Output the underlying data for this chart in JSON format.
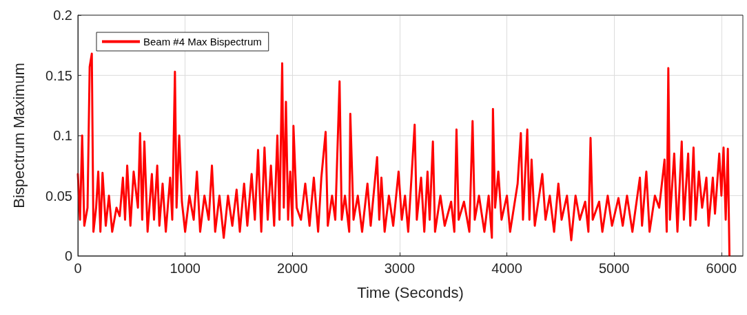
{
  "chart_data": {
    "type": "line",
    "xlabel": "Time (Seconds)",
    "ylabel": "Bispectrum Maximum",
    "xlim": [
      0,
      6200
    ],
    "ylim": [
      0,
      0.2
    ],
    "xticks": [
      0,
      1000,
      2000,
      3000,
      4000,
      5000,
      6000
    ],
    "yticks": [
      0,
      0.05,
      0.1,
      0.15,
      0.2
    ],
    "grid": true,
    "legend": "top left",
    "marker": "none",
    "line_style": "solid",
    "series": [
      {
        "name": "Beam #4 Max Bispectrum",
        "color": "#ff0000",
        "x": [
          0,
          20,
          40,
          60,
          90,
          110,
          130,
          145,
          170,
          190,
          210,
          230,
          260,
          290,
          320,
          360,
          390,
          420,
          440,
          460,
          490,
          520,
          560,
          580,
          600,
          620,
          650,
          690,
          710,
          740,
          760,
          790,
          820,
          860,
          880,
          905,
          920,
          945,
          970,
          1000,
          1040,
          1080,
          1110,
          1140,
          1180,
          1220,
          1250,
          1280,
          1320,
          1360,
          1400,
          1440,
          1480,
          1510,
          1550,
          1580,
          1620,
          1650,
          1680,
          1710,
          1740,
          1770,
          1800,
          1830,
          1860,
          1880,
          1905,
          1920,
          1940,
          1960,
          1980,
          2000,
          2010,
          2040,
          2080,
          2120,
          2160,
          2200,
          2240,
          2270,
          2310,
          2330,
          2370,
          2400,
          2440,
          2460,
          2490,
          2530,
          2540,
          2570,
          2610,
          2650,
          2700,
          2730,
          2790,
          2810,
          2830,
          2860,
          2900,
          2940,
          2990,
          3020,
          3050,
          3080,
          3140,
          3160,
          3200,
          3230,
          3260,
          3280,
          3310,
          3330,
          3380,
          3420,
          3480,
          3510,
          3530,
          3550,
          3600,
          3650,
          3680,
          3700,
          3740,
          3790,
          3830,
          3860,
          3870,
          3890,
          3920,
          3950,
          4000,
          4030,
          4100,
          4130,
          4150,
          4190,
          4210,
          4230,
          4260,
          4330,
          4360,
          4400,
          4440,
          4480,
          4510,
          4560,
          4600,
          4640,
          4680,
          4730,
          4760,
          4780,
          4800,
          4860,
          4890,
          4940,
          4980,
          5040,
          5080,
          5120,
          5170,
          5240,
          5260,
          5300,
          5330,
          5380,
          5420,
          5470,
          5490,
          5505,
          5520,
          5560,
          5590,
          5630,
          5650,
          5690,
          5710,
          5740,
          5760,
          5790,
          5820,
          5860,
          5880,
          5920,
          5940,
          5980,
          6000,
          6020,
          6040,
          6060,
          6075
        ],
        "values": [
          0.068,
          0.03,
          0.1,
          0.025,
          0.04,
          0.157,
          0.168,
          0.02,
          0.04,
          0.07,
          0.02,
          0.069,
          0.025,
          0.05,
          0.02,
          0.04,
          0.033,
          0.065,
          0.03,
          0.075,
          0.025,
          0.07,
          0.04,
          0.102,
          0.03,
          0.095,
          0.02,
          0.068,
          0.03,
          0.075,
          0.025,
          0.06,
          0.02,
          0.065,
          0.03,
          0.153,
          0.04,
          0.1,
          0.045,
          0.02,
          0.05,
          0.03,
          0.07,
          0.02,
          0.05,
          0.03,
          0.075,
          0.02,
          0.05,
          0.015,
          0.05,
          0.025,
          0.055,
          0.02,
          0.06,
          0.025,
          0.068,
          0.03,
          0.088,
          0.02,
          0.09,
          0.03,
          0.075,
          0.025,
          0.1,
          0.03,
          0.16,
          0.04,
          0.128,
          0.03,
          0.07,
          0.025,
          0.108,
          0.04,
          0.03,
          0.06,
          0.025,
          0.065,
          0.02,
          0.065,
          0.103,
          0.025,
          0.05,
          0.03,
          0.145,
          0.03,
          0.05,
          0.02,
          0.118,
          0.03,
          0.05,
          0.02,
          0.06,
          0.025,
          0.082,
          0.03,
          0.065,
          0.02,
          0.05,
          0.025,
          0.07,
          0.03,
          0.05,
          0.02,
          0.109,
          0.03,
          0.065,
          0.02,
          0.07,
          0.03,
          0.095,
          0.02,
          0.05,
          0.025,
          0.045,
          0.02,
          0.105,
          0.03,
          0.045,
          0.02,
          0.112,
          0.03,
          0.05,
          0.02,
          0.05,
          0.015,
          0.122,
          0.04,
          0.07,
          0.03,
          0.05,
          0.02,
          0.06,
          0.102,
          0.03,
          0.105,
          0.03,
          0.08,
          0.025,
          0.068,
          0.03,
          0.05,
          0.02,
          0.06,
          0.03,
          0.05,
          0.013,
          0.05,
          0.03,
          0.045,
          0.02,
          0.098,
          0.03,
          0.045,
          0.02,
          0.05,
          0.025,
          0.048,
          0.025,
          0.05,
          0.02,
          0.065,
          0.025,
          0.07,
          0.02,
          0.05,
          0.04,
          0.08,
          0.02,
          0.156,
          0.03,
          0.085,
          0.02,
          0.095,
          0.03,
          0.085,
          0.025,
          0.09,
          0.03,
          0.07,
          0.04,
          0.065,
          0.025,
          0.065,
          0.035,
          0.085,
          0.05,
          0.09,
          0.03,
          0.089,
          0
        ]
      }
    ]
  }
}
